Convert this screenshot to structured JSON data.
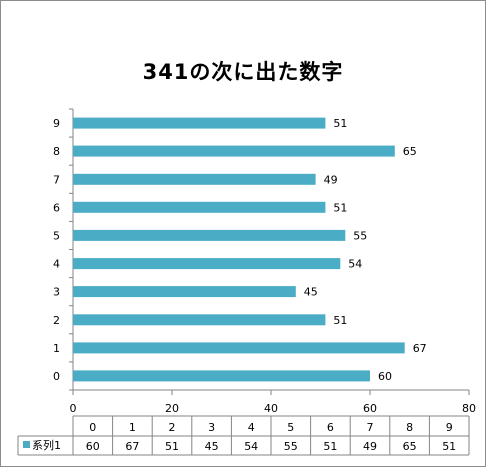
{
  "chart_data": {
    "type": "bar",
    "orientation": "horizontal",
    "title": "341の次に出た数字",
    "xlabel": "",
    "ylabel": "",
    "categories": [
      "0",
      "1",
      "2",
      "3",
      "4",
      "5",
      "6",
      "7",
      "8",
      "9"
    ],
    "series": [
      {
        "name": "系列1",
        "values": [
          60,
          67,
          51,
          45,
          54,
          55,
          51,
          49,
          65,
          51
        ],
        "color": "#4bacc6"
      }
    ],
    "xlim": [
      0,
      80
    ],
    "xticks": [
      "0",
      "20",
      "40",
      "60",
      "80"
    ],
    "grid": false,
    "data_labels": true,
    "data_table": true
  }
}
